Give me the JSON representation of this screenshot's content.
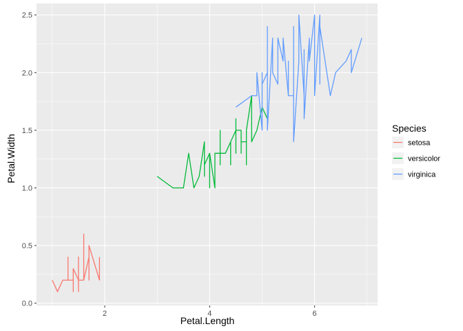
{
  "chart_data": {
    "type": "line",
    "xlabel": "Petal.Length",
    "ylabel": "Petal.Width",
    "xlim": [
      0.7,
      7.2
    ],
    "ylim": [
      -0.02,
      2.6
    ],
    "x_ticks": [
      2,
      4,
      6
    ],
    "x_tick_labels": [
      "2",
      "4",
      "6"
    ],
    "y_ticks": [
      0.0,
      0.5,
      1.0,
      1.5,
      2.0,
      2.5
    ],
    "y_tick_labels": [
      "0.0",
      "0.5",
      "1.0",
      "1.5",
      "2.0",
      "2.5"
    ],
    "grid": true,
    "panel_background": "#ebebeb",
    "legend": {
      "title": "Species",
      "position": "right"
    },
    "series": [
      {
        "name": "setosa",
        "color": "#F8766D",
        "points": [
          [
            1.0,
            0.2
          ],
          [
            1.1,
            0.1
          ],
          [
            1.2,
            0.2
          ],
          [
            1.2,
            0.2
          ],
          [
            1.3,
            0.2
          ],
          [
            1.3,
            0.4
          ],
          [
            1.3,
            0.2
          ],
          [
            1.3,
            0.2
          ],
          [
            1.3,
            0.3
          ],
          [
            1.3,
            0.2
          ],
          [
            1.3,
            0.3
          ],
          [
            1.3,
            0.2
          ],
          [
            1.4,
            0.2
          ],
          [
            1.4,
            0.2
          ],
          [
            1.4,
            0.1
          ],
          [
            1.4,
            0.3
          ],
          [
            1.4,
            0.2
          ],
          [
            1.4,
            0.2
          ],
          [
            1.4,
            0.2
          ],
          [
            1.4,
            0.1
          ],
          [
            1.4,
            0.2
          ],
          [
            1.4,
            0.2
          ],
          [
            1.4,
            0.2
          ],
          [
            1.4,
            0.2
          ],
          [
            1.4,
            0.3
          ],
          [
            1.5,
            0.2
          ],
          [
            1.5,
            0.2
          ],
          [
            1.5,
            0.1
          ],
          [
            1.5,
            0.2
          ],
          [
            1.5,
            0.4
          ],
          [
            1.5,
            0.2
          ],
          [
            1.5,
            0.2
          ],
          [
            1.5,
            0.1
          ],
          [
            1.5,
            0.2
          ],
          [
            1.5,
            0.2
          ],
          [
            1.5,
            0.4
          ],
          [
            1.5,
            0.2
          ],
          [
            1.5,
            0.2
          ],
          [
            1.6,
            0.2
          ],
          [
            1.6,
            0.2
          ],
          [
            1.6,
            0.4
          ],
          [
            1.6,
            0.2
          ],
          [
            1.6,
            0.6
          ],
          [
            1.6,
            0.2
          ],
          [
            1.6,
            0.2
          ],
          [
            1.7,
            0.4
          ],
          [
            1.7,
            0.3
          ],
          [
            1.7,
            0.2
          ],
          [
            1.7,
            0.5
          ],
          [
            1.9,
            0.2
          ],
          [
            1.9,
            0.4
          ]
        ]
      },
      {
        "name": "versicolor",
        "color": "#00BA38",
        "points": [
          [
            3.0,
            1.1
          ],
          [
            3.3,
            1.0
          ],
          [
            3.3,
            1.0
          ],
          [
            3.5,
            1.0
          ],
          [
            3.5,
            1.0
          ],
          [
            3.6,
            1.3
          ],
          [
            3.7,
            1.0
          ],
          [
            3.8,
            1.1
          ],
          [
            3.9,
            1.4
          ],
          [
            3.9,
            1.1
          ],
          [
            3.9,
            1.2
          ],
          [
            4.0,
            1.3
          ],
          [
            4.0,
            1.0
          ],
          [
            4.0,
            1.3
          ],
          [
            4.0,
            1.2
          ],
          [
            4.0,
            1.3
          ],
          [
            4.1,
            1.0
          ],
          [
            4.1,
            1.3
          ],
          [
            4.1,
            1.3
          ],
          [
            4.2,
            1.3
          ],
          [
            4.2,
            1.5
          ],
          [
            4.2,
            1.2
          ],
          [
            4.2,
            1.3
          ],
          [
            4.3,
            1.3
          ],
          [
            4.3,
            1.3
          ],
          [
            4.4,
            1.4
          ],
          [
            4.4,
            1.3
          ],
          [
            4.4,
            1.2
          ],
          [
            4.4,
            1.4
          ],
          [
            4.5,
            1.5
          ],
          [
            4.5,
            1.5
          ],
          [
            4.5,
            1.5
          ],
          [
            4.5,
            1.5
          ],
          [
            4.5,
            1.3
          ],
          [
            4.5,
            1.6
          ],
          [
            4.5,
            1.5
          ],
          [
            4.6,
            1.5
          ],
          [
            4.6,
            1.3
          ],
          [
            4.6,
            1.4
          ],
          [
            4.7,
            1.4
          ],
          [
            4.7,
            1.4
          ],
          [
            4.7,
            1.2
          ],
          [
            4.7,
            1.4
          ],
          [
            4.7,
            1.5
          ],
          [
            4.8,
            1.8
          ],
          [
            4.8,
            1.4
          ],
          [
            4.9,
            1.5
          ],
          [
            5.0,
            1.7
          ],
          [
            5.1,
            1.6
          ]
        ]
      },
      {
        "name": "virginica",
        "color": "#619CFF",
        "points": [
          [
            4.5,
            1.7
          ],
          [
            4.8,
            1.8
          ],
          [
            4.8,
            1.8
          ],
          [
            4.9,
            1.8
          ],
          [
            4.9,
            2.0
          ],
          [
            5.0,
            1.5
          ],
          [
            5.0,
            2.0
          ],
          [
            5.0,
            1.9
          ],
          [
            5.1,
            2.0
          ],
          [
            5.1,
            1.9
          ],
          [
            5.1,
            2.4
          ],
          [
            5.1,
            2.3
          ],
          [
            5.1,
            1.8
          ],
          [
            5.1,
            1.5
          ],
          [
            5.2,
            2.3
          ],
          [
            5.2,
            2.0
          ],
          [
            5.3,
            1.9
          ],
          [
            5.3,
            2.3
          ],
          [
            5.4,
            2.1
          ],
          [
            5.4,
            2.3
          ],
          [
            5.5,
            1.8
          ],
          [
            5.5,
            2.1
          ],
          [
            5.5,
            1.8
          ],
          [
            5.6,
            1.8
          ],
          [
            5.6,
            2.1
          ],
          [
            5.6,
            2.4
          ],
          [
            5.6,
            2.2
          ],
          [
            5.6,
            2.4
          ],
          [
            5.6,
            1.4
          ],
          [
            5.7,
            2.1
          ],
          [
            5.7,
            2.3
          ],
          [
            5.7,
            2.5
          ],
          [
            5.8,
            1.8
          ],
          [
            5.8,
            2.2
          ],
          [
            5.8,
            1.6
          ],
          [
            5.9,
            2.3
          ],
          [
            5.9,
            2.1
          ],
          [
            6.0,
            2.5
          ],
          [
            6.0,
            1.8
          ],
          [
            6.1,
            2.5
          ],
          [
            6.1,
            2.3
          ],
          [
            6.1,
            1.9
          ],
          [
            6.1,
            2.4
          ],
          [
            6.3,
            1.8
          ],
          [
            6.4,
            2.0
          ],
          [
            6.6,
            2.1
          ],
          [
            6.7,
            2.2
          ],
          [
            6.7,
            2.0
          ],
          [
            6.9,
            2.3
          ]
        ]
      }
    ]
  }
}
